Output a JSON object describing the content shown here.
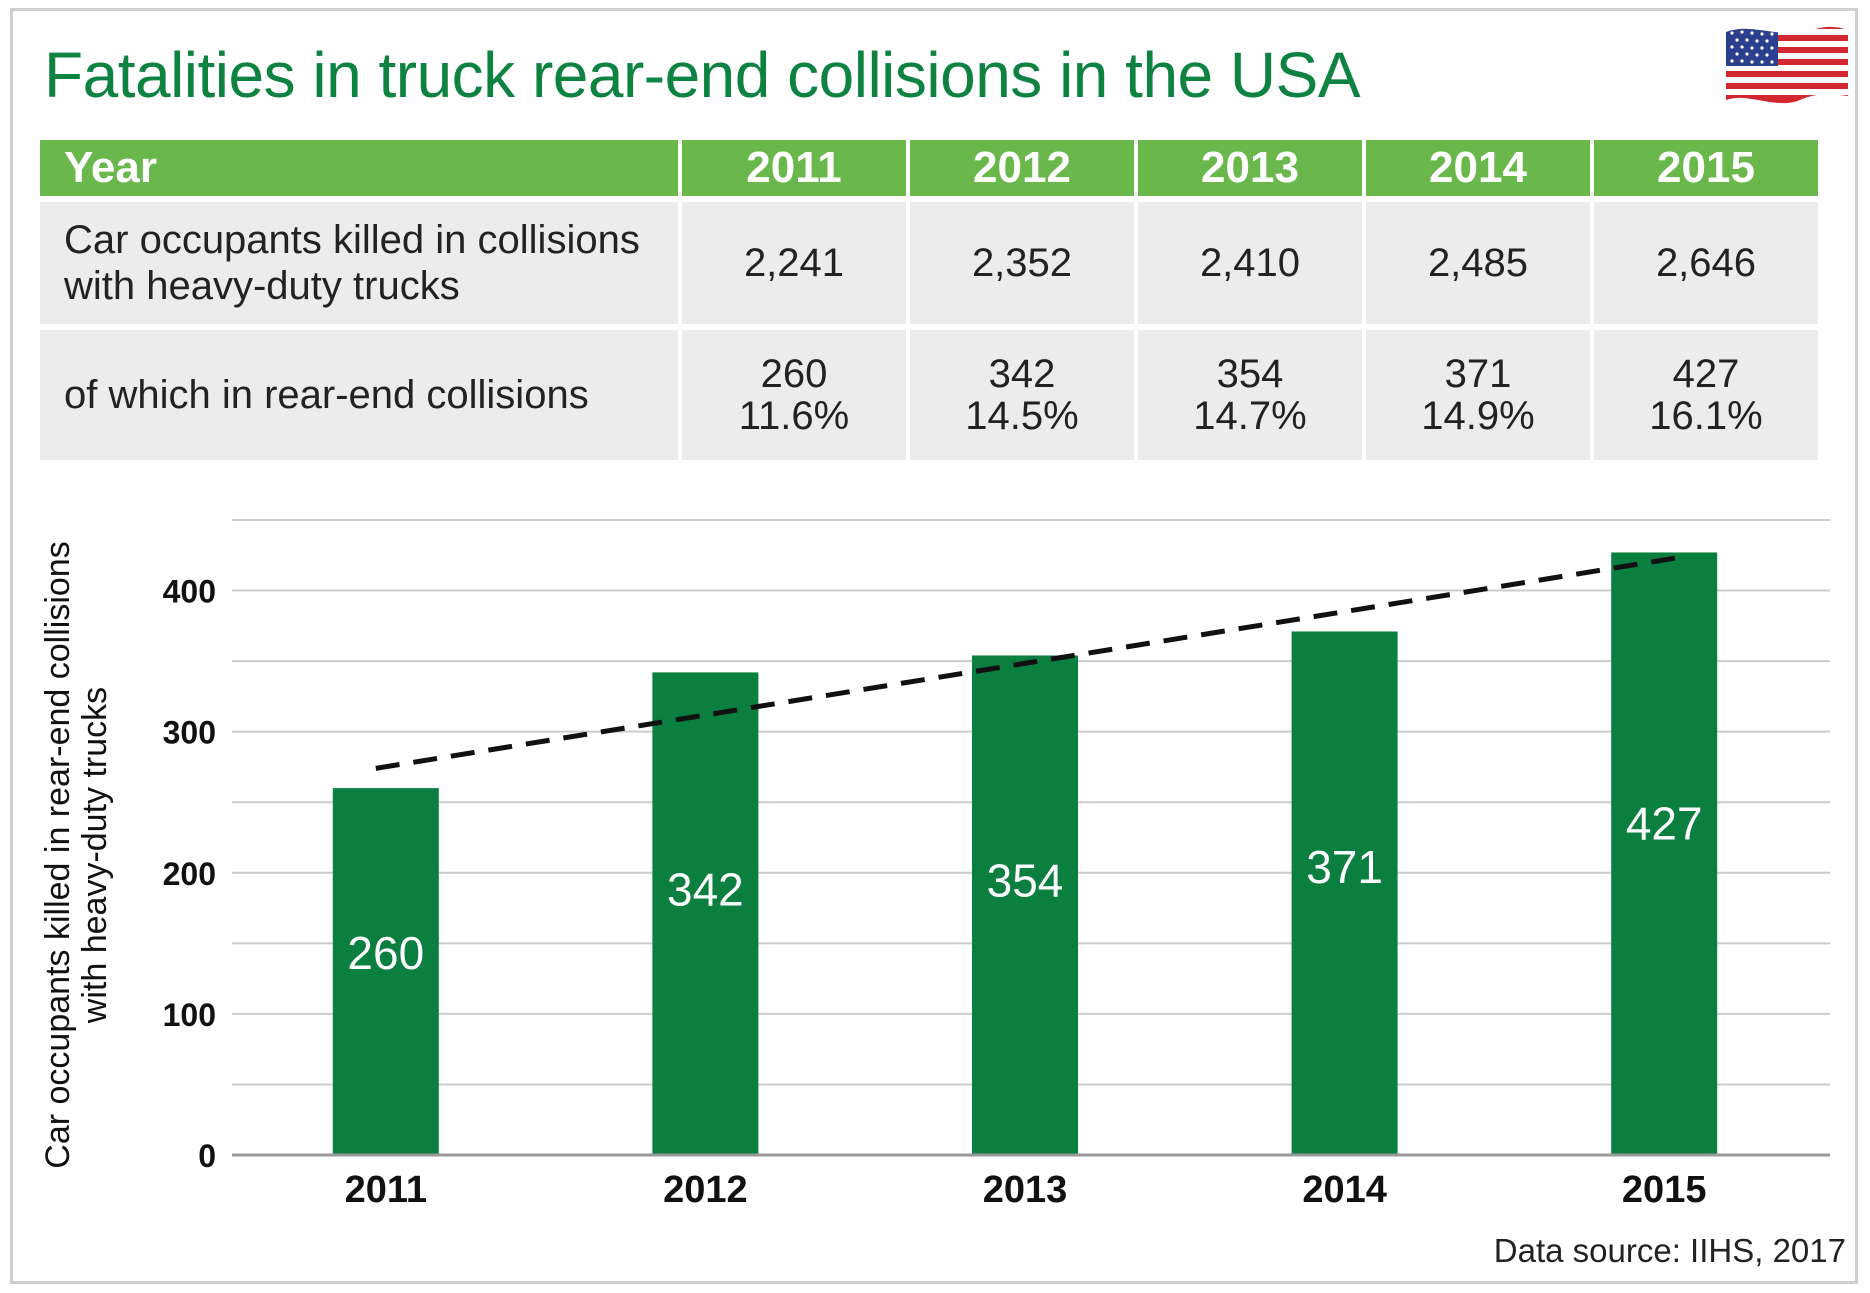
{
  "title": "Fatalities in truck rear-end collisions in the USA",
  "source": "Data source: IIHS, 2017",
  "table": {
    "header_label": "Year",
    "years": [
      "2011",
      "2012",
      "2013",
      "2014",
      "2015"
    ],
    "rows": [
      {
        "label": "Car occupants killed in collisions with heavy-duty trucks",
        "values": [
          "2,241",
          "2,352",
          "2,410",
          "2,485",
          "2,646"
        ]
      },
      {
        "label": "of which in rear-end collisions",
        "values": [
          "260",
          "342",
          "354",
          "371",
          "427"
        ],
        "percents": [
          "11.6%",
          "14.5%",
          "14.7%",
          "14.9%",
          "16.1%"
        ]
      }
    ]
  },
  "colors": {
    "title": "#0e8241",
    "bar": "#0a7f3f",
    "header": "#6ab84c",
    "cell": "#ececec",
    "grid": "#cccccc",
    "axis": "#999999",
    "trend": "#111111"
  },
  "chart_data": {
    "type": "bar",
    "categories": [
      "2011",
      "2012",
      "2013",
      "2014",
      "2015"
    ],
    "values": [
      260,
      342,
      354,
      371,
      427
    ],
    "data_labels": [
      "260",
      "342",
      "354",
      "371",
      "427"
    ],
    "ylabel": "Car occupants killed in rear-end collisions with heavy-duty trucks",
    "xlabel": "",
    "ylim": [
      0,
      450
    ],
    "yticks": [
      0,
      100,
      200,
      300,
      400
    ],
    "grid": true,
    "trendline": {
      "style": "dashed",
      "from": 274,
      "to": 424
    }
  }
}
